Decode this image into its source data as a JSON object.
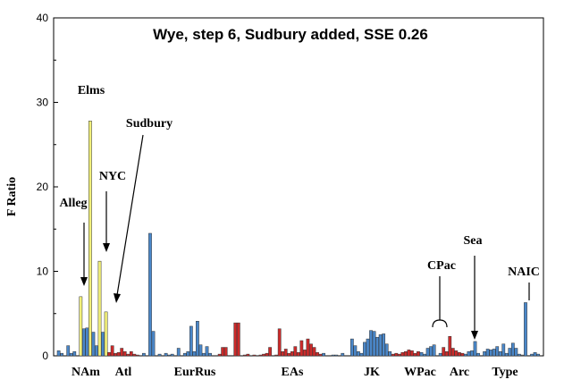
{
  "chart_data": {
    "type": "bar",
    "title": "Wye, step 6, Sudbury added, SSE 0.26",
    "xlabel": "",
    "ylabel": "F Ratio",
    "ylim": [
      0,
      40
    ],
    "yticks": [
      "0",
      "10",
      "20",
      "30",
      "40"
    ],
    "grid": false,
    "colors": {
      "blue": "#4a87c9",
      "red": "#cc2a2a",
      "yellow": "#f2f07a",
      "gray": "#7a7a7a"
    },
    "series": [
      {
        "name": "",
        "values": [
          0.6,
          0.3,
          0,
          1.2,
          0.3,
          0.5,
          0,
          7.0,
          3.2,
          3.3,
          27.8,
          2.8,
          1.2,
          11.2,
          2.8,
          5.2,
          0.4,
          1.2,
          0.3,
          0.4,
          0.9,
          0.5,
          0.2,
          0.5,
          0.2,
          0.1,
          0,
          0.3,
          0,
          14.5,
          2.9,
          0,
          0.2,
          0,
          0.3,
          0.1,
          0.2,
          0,
          0.9,
          0,
          0.3,
          0.5,
          3.5,
          0.5,
          4.1,
          1.3,
          0.3,
          1.1,
          0.3,
          0,
          0,
          0.2,
          1.0,
          1.0,
          0,
          0,
          3.9,
          3.9,
          0,
          0.1,
          0.2,
          0,
          0.1,
          0,
          0.1,
          0.2,
          0.3,
          1.0,
          0,
          0.1,
          3.2,
          0.5,
          0.8,
          0.3,
          0.5,
          1.1,
          0.4,
          1.8,
          0.7,
          2.0,
          1.4,
          1.0,
          0.4,
          0.2,
          0.3,
          0,
          0,
          0.1,
          0.1,
          0,
          0.3,
          0,
          0,
          2.0,
          1.2,
          0.5,
          0.3,
          1.6,
          2.0,
          3.0,
          2.9,
          2.2,
          2.5,
          2.6,
          1.4,
          0.5,
          0.2,
          0.3,
          0.2,
          0.4,
          0.5,
          0.7,
          0.6,
          0.3,
          0.5,
          0.4,
          0.2,
          0.9,
          1.1,
          1.3,
          0,
          0.3,
          1.0,
          0.5,
          2.3,
          0.9,
          0.6,
          0.4,
          0.3,
          0.2,
          0.5,
          0.6,
          1.7,
          0.3,
          0,
          0.5,
          0.8,
          0.7,
          0.8,
          1.1,
          0.5,
          1.4,
          0.3,
          0.9,
          1.5,
          0.9,
          0.2,
          0.1,
          6.3,
          0,
          0.2,
          0.4,
          0.2
        ]
      }
    ],
    "bar_colors": [
      "blue",
      "blue",
      "blue",
      "blue",
      "blue",
      "blue",
      "blue",
      "yellow",
      "blue",
      "blue",
      "yellow",
      "blue",
      "blue",
      "yellow",
      "blue",
      "yellow",
      "red",
      "red",
      "red",
      "red",
      "red",
      "red",
      "red",
      "red",
      "red",
      "red",
      "blue",
      "blue",
      "blue",
      "blue",
      "blue",
      "blue",
      "blue",
      "blue",
      "blue",
      "blue",
      "blue",
      "blue",
      "blue",
      "blue",
      "blue",
      "blue",
      "blue",
      "blue",
      "blue",
      "blue",
      "blue",
      "blue",
      "blue",
      "red",
      "red",
      "red",
      "red",
      "red",
      "red",
      "red",
      "red",
      "red",
      "red",
      "red",
      "red",
      "red",
      "red",
      "red",
      "red",
      "red",
      "red",
      "red",
      "red",
      "red",
      "red",
      "red",
      "red",
      "red",
      "red",
      "red",
      "red",
      "red",
      "red",
      "red",
      "red",
      "red",
      "red",
      "red",
      "blue",
      "blue",
      "blue",
      "blue",
      "blue",
      "blue",
      "blue",
      "blue",
      "blue",
      "blue",
      "blue",
      "blue",
      "blue",
      "blue",
      "blue",
      "blue",
      "blue",
      "blue",
      "blue",
      "blue",
      "blue",
      "blue",
      "red",
      "red",
      "red",
      "red",
      "red",
      "red",
      "red",
      "red",
      "red",
      "blue",
      "blue",
      "blue",
      "blue",
      "blue",
      "blue",
      "blue",
      "red",
      "red",
      "red",
      "red",
      "red",
      "red",
      "red",
      "blue",
      "blue",
      "blue",
      "blue",
      "blue",
      "blue",
      "blue",
      "blue",
      "blue",
      "blue",
      "blue",
      "blue",
      "blue",
      "blue",
      "blue",
      "blue",
      "blue",
      "blue",
      "gray",
      "blue",
      "blue",
      "blue",
      "blue"
    ],
    "groups": [
      "NAm",
      "Atl",
      "EurRus",
      "EAs",
      "JK",
      "WPac",
      "Arc",
      "Type"
    ],
    "annotations": [
      "Elms",
      "Sudbury",
      "NYC",
      "Alleg",
      "CPac",
      "Sea",
      "NAIC"
    ]
  }
}
